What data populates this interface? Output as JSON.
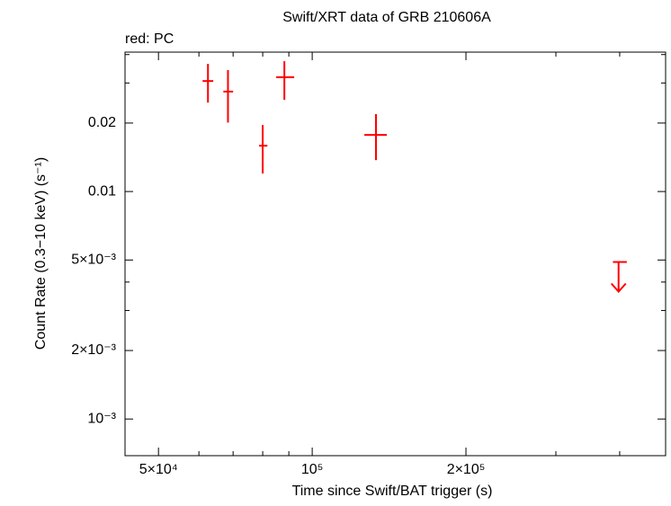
{
  "chart_data": {
    "type": "scatter",
    "title": "Swift/XRT data of GRB 210606A",
    "subtitle": "red: PC",
    "x_label": "Time since Swift/BAT trigger (s)",
    "y_label": "Count Rate (0.3−10 keV) (s⁻¹)",
    "log_x": true,
    "log_y": true,
    "xlim": [
      43000,
      492000
    ],
    "ylim": [
      0.00069,
      0.041
    ],
    "xticks": [
      {
        "value": 50000,
        "label": "5×10⁴"
      },
      {
        "value": 100000,
        "label": "10⁵"
      },
      {
        "value": 200000,
        "label": "2×10⁵"
      }
    ],
    "xminor": [
      60000,
      70000,
      80000,
      90000,
      300000,
      400000
    ],
    "yticks": [
      {
        "value": 0.02,
        "label": "0.02"
      },
      {
        "value": 0.01,
        "label": "0.01"
      },
      {
        "value": 0.005,
        "label": "5×10⁻³"
      },
      {
        "value": 0.002,
        "label": "2×10⁻³"
      },
      {
        "value": 0.001,
        "label": "10⁻³"
      }
    ],
    "yminor": [
      0.04,
      0.03,
      0.004,
      0.003
    ],
    "series": [
      {
        "name": "PC",
        "color": "#ff0000",
        "x": [
          62500,
          68400,
          80000,
          88200,
          133300
        ],
        "x_low": [
          61000,
          67000,
          78700,
          85000,
          126500
        ],
        "x_high": [
          64000,
          70000,
          81700,
          92200,
          140000
        ],
        "y": [
          0.0306,
          0.0275,
          0.0159,
          0.0318,
          0.01774
        ],
        "y_low": [
          0.0246,
          0.0201,
          0.012,
          0.0253,
          0.01374
        ],
        "y_high": [
          0.0364,
          0.0342,
          0.0196,
          0.0374,
          0.0219
        ]
      }
    ],
    "upper_limits": {
      "color": "#ff0000",
      "x": [
        398000
      ],
      "x_low": [
        388000
      ],
      "x_high": [
        413000
      ],
      "y": [
        0.0049
      ]
    }
  }
}
